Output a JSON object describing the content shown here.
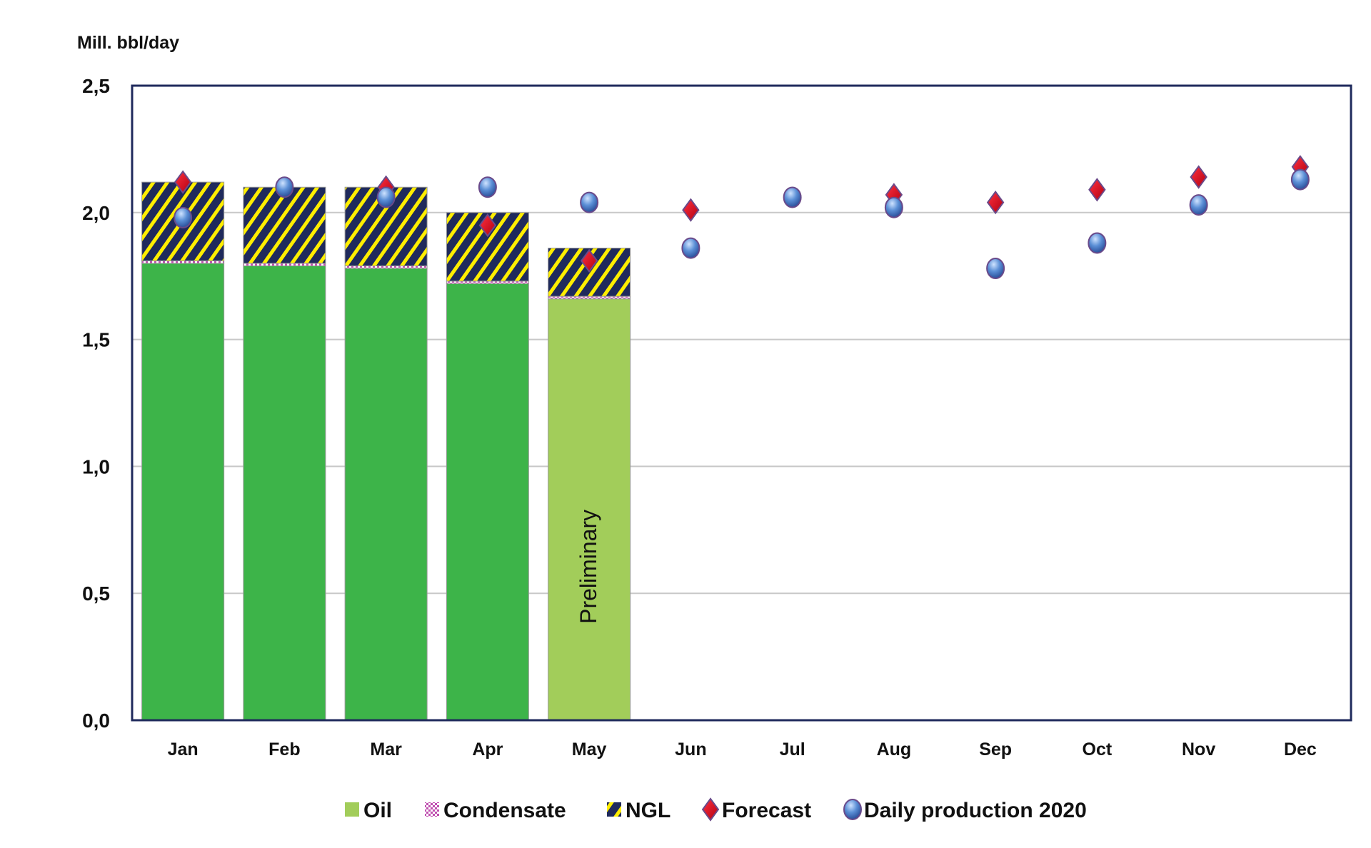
{
  "chart_data": {
    "type": "bar",
    "stacked": true,
    "ylabel": "Mill. bbl/day",
    "ylim": [
      0,
      2.5
    ],
    "yticks": [
      "0,0",
      "0,5",
      "1,0",
      "1,5",
      "2,0",
      "2,5"
    ],
    "ytick_values": [
      0,
      0.5,
      1.0,
      1.5,
      2.0,
      2.5
    ],
    "grid": true,
    "legend_position": "bottom",
    "categories": [
      "Jan",
      "Feb",
      "Mar",
      "Apr",
      "May",
      "Jun",
      "Jul",
      "Aug",
      "Sep",
      "Oct",
      "Nov",
      "Dec"
    ],
    "annotation": "Preliminary",
    "annotation_category": "May",
    "series": [
      {
        "name": "Oil",
        "kind": "bar",
        "values": [
          1.8,
          1.79,
          1.78,
          1.72,
          1.66,
          null,
          null,
          null,
          null,
          null,
          null,
          null
        ],
        "color": "#3db449",
        "preliminary_color": "#a2cd5a"
      },
      {
        "name": "Condensate",
        "kind": "bar",
        "values": [
          0.01,
          0.01,
          0.01,
          0.01,
          0.01,
          null,
          null,
          null,
          null,
          null,
          null,
          null
        ],
        "color": "#c050b0"
      },
      {
        "name": "NGL",
        "kind": "bar",
        "values": [
          0.31,
          0.3,
          0.31,
          0.27,
          0.19,
          null,
          null,
          null,
          null,
          null,
          null,
          null
        ],
        "color": "#1f2a5c",
        "stripe_color": "#ffee00"
      },
      {
        "name": "Forecast",
        "kind": "marker",
        "marker": "diamond",
        "values": [
          2.12,
          null,
          2.1,
          1.95,
          1.81,
          2.01,
          null,
          2.07,
          2.04,
          2.09,
          2.14,
          2.18
        ],
        "color": "#e01020"
      },
      {
        "name": "Daily production 2020",
        "kind": "marker",
        "marker": "circle",
        "values": [
          1.98,
          2.1,
          2.06,
          2.1,
          2.04,
          1.86,
          2.06,
          2.02,
          1.78,
          1.88,
          2.03,
          2.13
        ],
        "color": "#5b8fd6"
      }
    ]
  }
}
